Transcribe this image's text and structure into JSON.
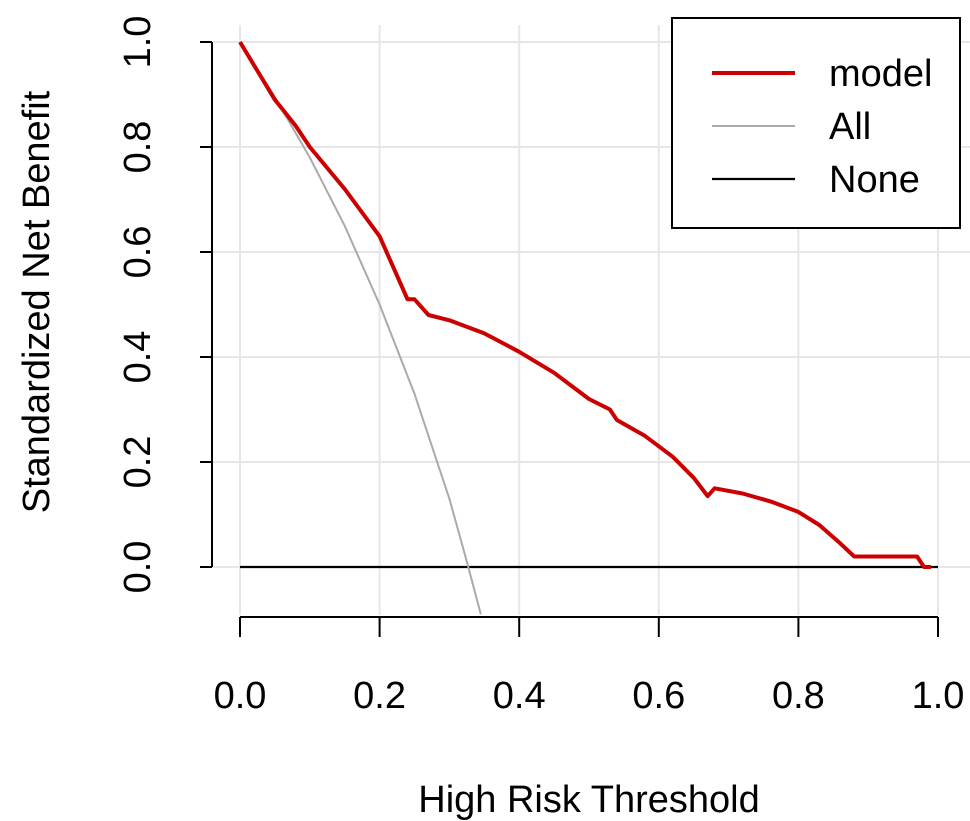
{
  "chart_data": {
    "type": "line",
    "title": "",
    "xlabel": "High Risk Threshold",
    "ylabel": "Standardized Net Benefit",
    "xlim": [
      0,
      1
    ],
    "ylim": [
      -0.09,
      1.0
    ],
    "grid": true,
    "legend_position": "top-right",
    "x_ticks": [
      0.0,
      0.2,
      0.4,
      0.6,
      0.8,
      1.0
    ],
    "x_tick_labels": [
      "0.0",
      "0.2",
      "0.4",
      "0.6",
      "0.8",
      "1.0"
    ],
    "y_ticks": [
      0.0,
      0.2,
      0.4,
      0.6,
      0.8,
      1.0
    ],
    "y_tick_labels": [
      "0.0",
      "0.2",
      "0.4",
      "0.6",
      "0.8",
      "1.0"
    ],
    "series": [
      {
        "name": "model",
        "color": "#cc0000",
        "x": [
          0.0,
          0.05,
          0.08,
          0.1,
          0.15,
          0.2,
          0.24,
          0.25,
          0.27,
          0.3,
          0.35,
          0.4,
          0.45,
          0.5,
          0.53,
          0.54,
          0.58,
          0.62,
          0.65,
          0.67,
          0.68,
          0.72,
          0.76,
          0.8,
          0.83,
          0.86,
          0.88,
          0.9,
          0.95,
          0.97,
          0.98,
          0.99
        ],
        "y": [
          1.0,
          0.89,
          0.84,
          0.8,
          0.72,
          0.63,
          0.51,
          0.51,
          0.48,
          0.47,
          0.445,
          0.41,
          0.37,
          0.32,
          0.3,
          0.28,
          0.25,
          0.21,
          0.17,
          0.135,
          0.15,
          0.14,
          0.125,
          0.105,
          0.08,
          0.045,
          0.02,
          0.02,
          0.02,
          0.02,
          0.0,
          0.0
        ]
      },
      {
        "name": "All",
        "color": "#aaaaaa",
        "x": [
          0.0,
          0.05,
          0.1,
          0.15,
          0.2,
          0.25,
          0.3,
          0.325,
          0.345
        ],
        "y": [
          1.0,
          0.895,
          0.78,
          0.65,
          0.5,
          0.33,
          0.13,
          0.01,
          -0.09
        ]
      },
      {
        "name": "None",
        "color": "#000000",
        "x": [
          0.0,
          1.0
        ],
        "y": [
          0.0,
          0.0
        ]
      }
    ]
  }
}
